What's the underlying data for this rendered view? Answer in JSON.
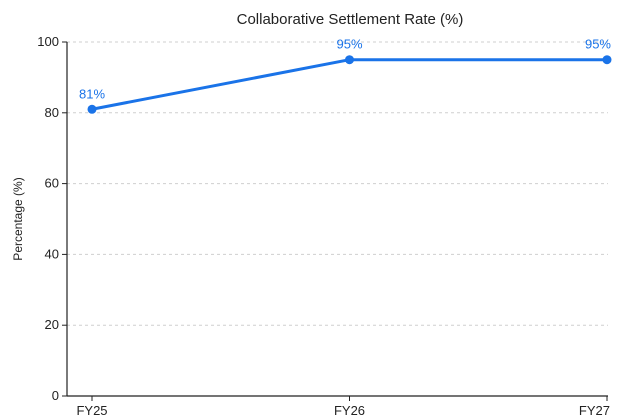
{
  "chart_data": {
    "type": "line",
    "title": "Collaborative Settlement Rate (%)",
    "xlabel": "",
    "ylabel": "Percentage (%)",
    "categories": [
      "FY25",
      "FY26",
      "FY27"
    ],
    "series": [
      {
        "values": [
          81,
          95,
          95
        ],
        "labels": [
          "81%",
          "95%",
          "95%"
        ],
        "color": "#1a73e8"
      }
    ],
    "ylim": [
      0,
      100
    ],
    "yticks": [
      0,
      20,
      40,
      60,
      80,
      100
    ],
    "ytick_labels": [
      "0",
      "20",
      "40",
      "60",
      "80",
      "100"
    ],
    "grid": true,
    "legend": "none"
  }
}
